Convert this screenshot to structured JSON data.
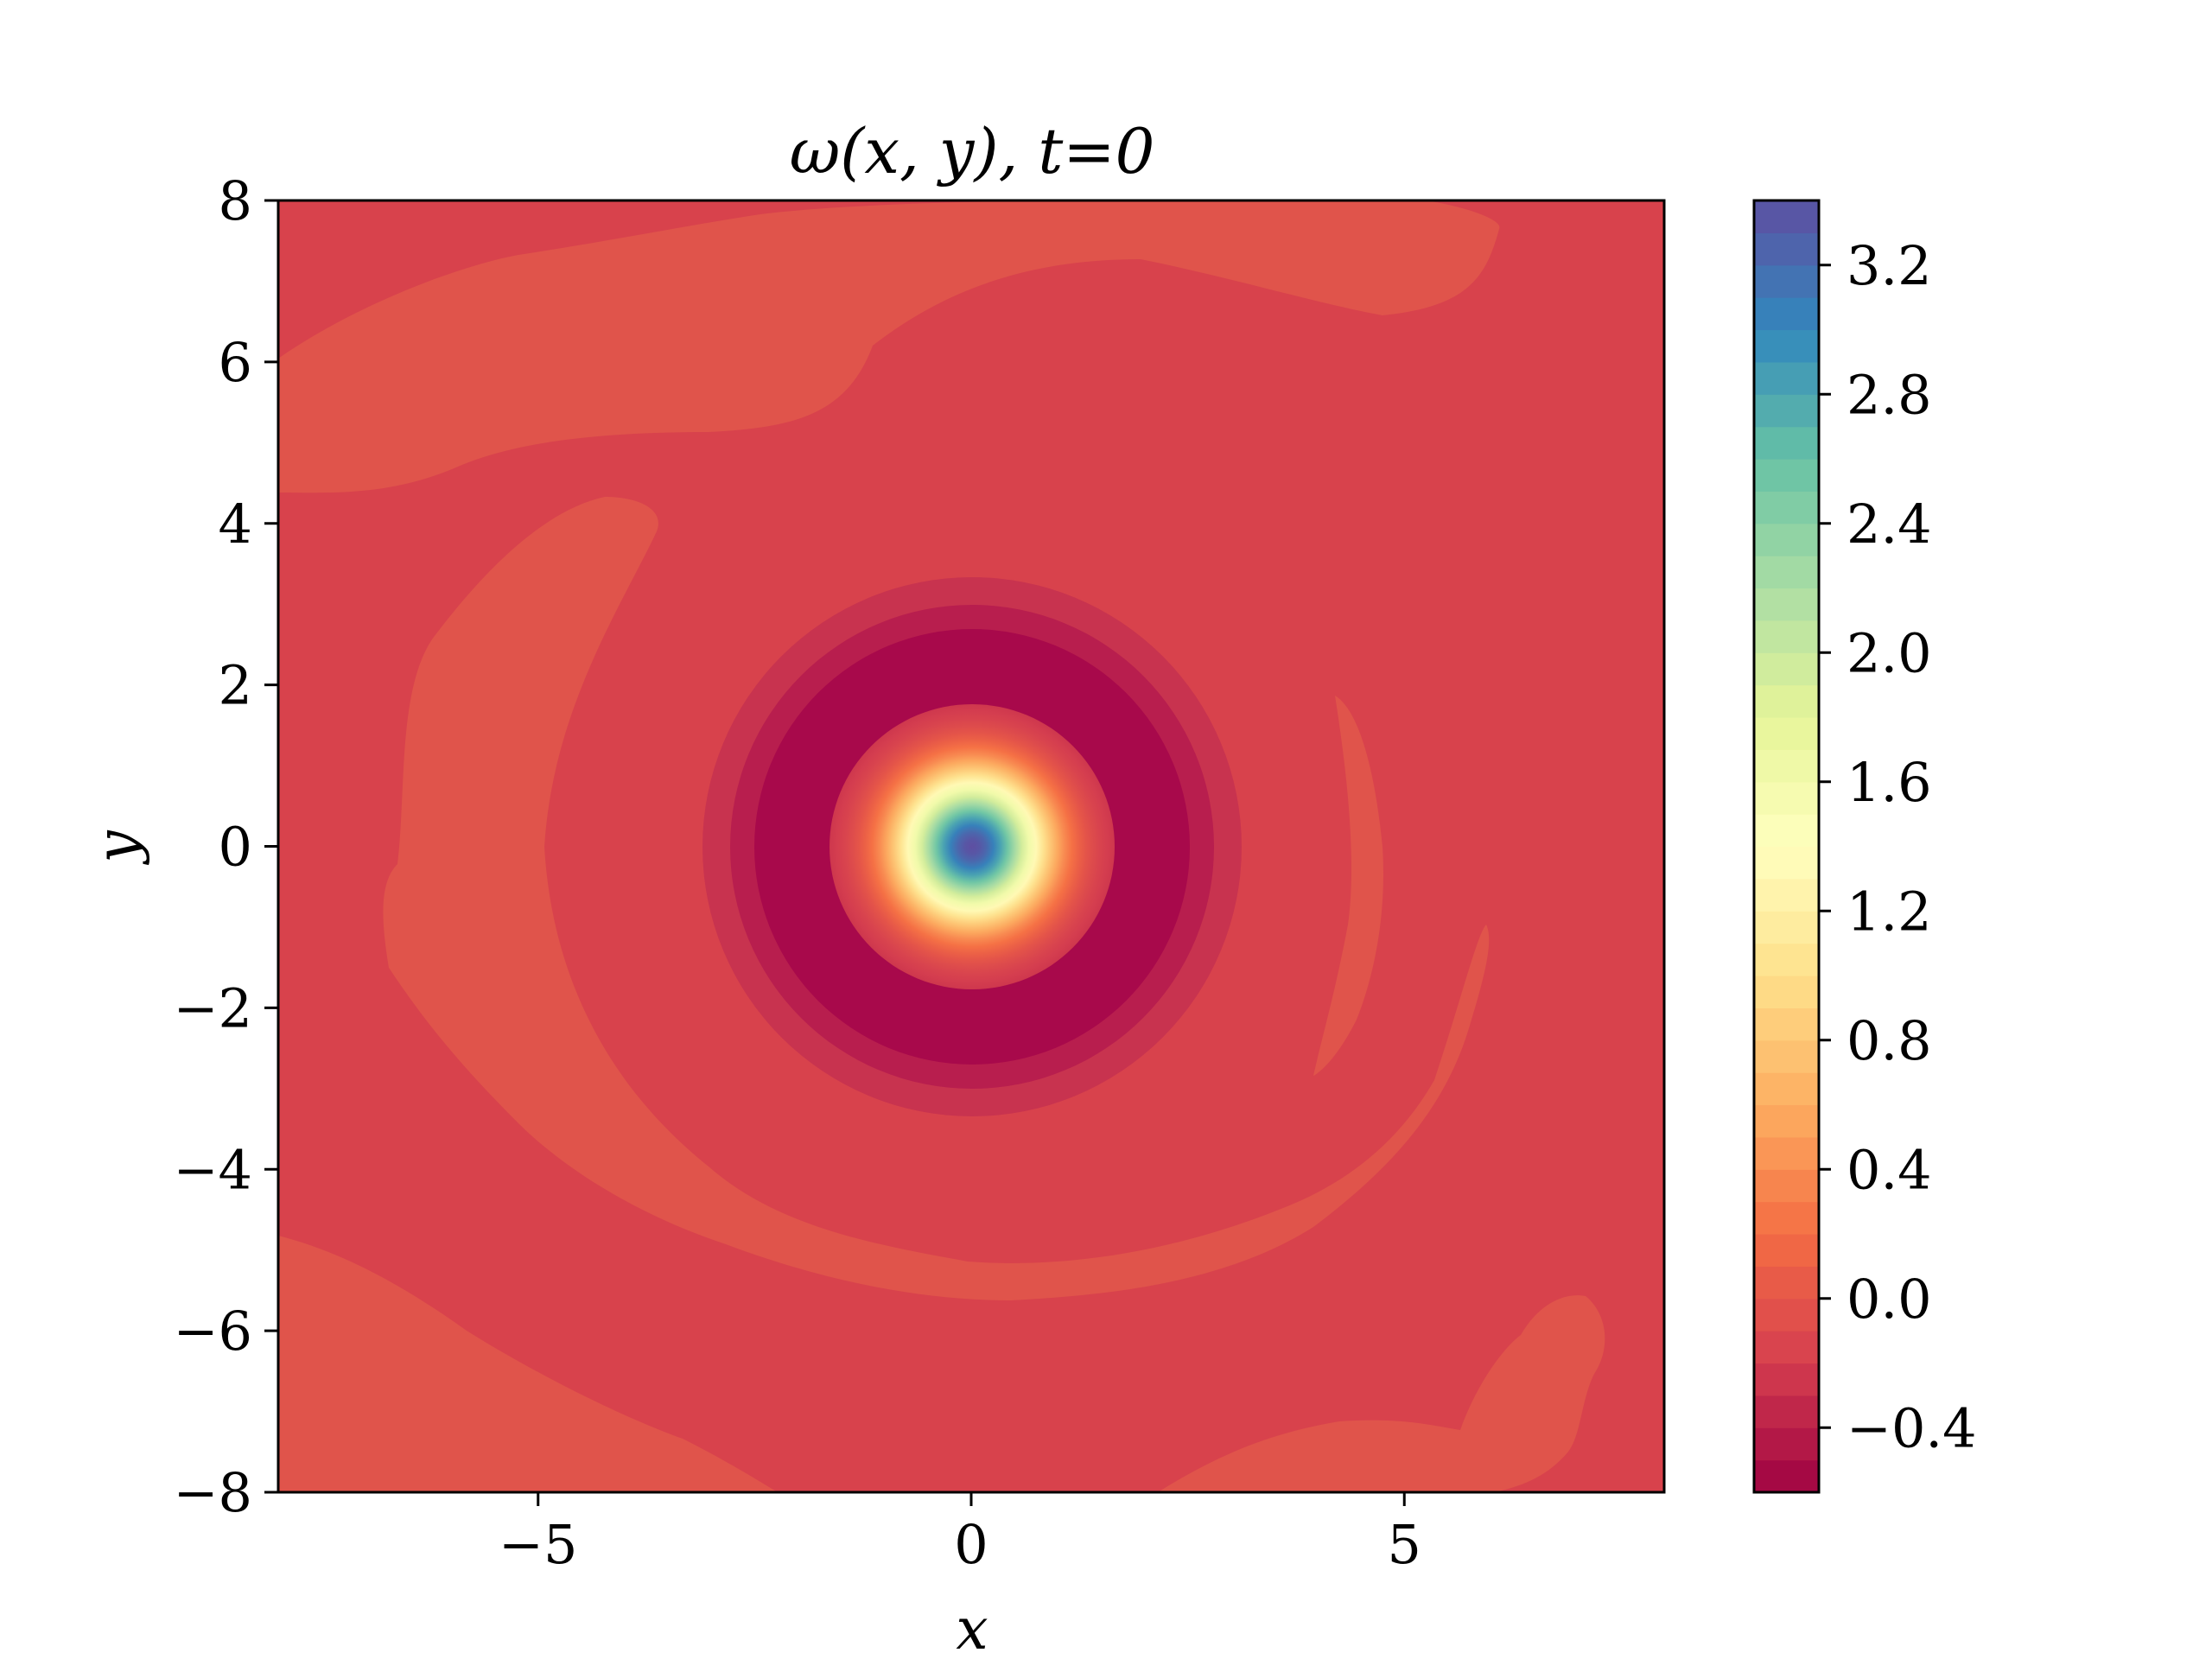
{
  "chart_data": {
    "type": "heatmap",
    "subtype": "filled-contour",
    "title": "ω(x, y),    t=0",
    "xlabel": "x",
    "ylabel": "y",
    "xlim": [
      -8,
      8
    ],
    "ylim": [
      -8,
      8
    ],
    "x_ticks": [
      {
        "value": -5,
        "label": "−5"
      },
      {
        "value": 0,
        "label": "0"
      },
      {
        "value": 5,
        "label": "5"
      }
    ],
    "y_ticks": [
      {
        "value": 8,
        "label": "8"
      },
      {
        "value": 6,
        "label": "6"
      },
      {
        "value": 4,
        "label": "4"
      },
      {
        "value": 2,
        "label": "2"
      },
      {
        "value": 0,
        "label": "0"
      },
      {
        "value": -2,
        "label": "−2"
      },
      {
        "value": -4,
        "label": "−4"
      },
      {
        "value": -6,
        "label": "−6"
      },
      {
        "value": -8,
        "label": "−8"
      }
    ],
    "colormap": "Spectral",
    "colorbar": {
      "range": [
        -0.6,
        3.4
      ],
      "levels": 40,
      "ticks": [
        {
          "value": -0.4,
          "label": "−0.4"
        },
        {
          "value": 0.0,
          "label": "0.0"
        },
        {
          "value": 0.4,
          "label": "0.4"
        },
        {
          "value": 0.8,
          "label": "0.8"
        },
        {
          "value": 1.2,
          "label": "1.2"
        },
        {
          "value": 1.6,
          "label": "1.6"
        },
        {
          "value": 2.0,
          "label": "2.0"
        },
        {
          "value": 2.4,
          "label": "2.4"
        },
        {
          "value": 2.8,
          "label": "2.8"
        },
        {
          "value": 3.2,
          "label": "3.2"
        }
      ]
    },
    "field": {
      "center": [
        0,
        0
      ],
      "peak_value": 3.4,
      "background_value": 0.0,
      "min_ring_value": -0.55,
      "min_ring_radius": 1.8,
      "core_radius": 1.0,
      "weak_positive_filament_value": 0.05
    },
    "colors": {
      "background_band": "#d8424c",
      "weak_positive_band": "#e0544b",
      "ring_band_1": "#c8334f",
      "ring_band_2": "#b81e4e",
      "ring_band_3": "#a8094b"
    }
  }
}
